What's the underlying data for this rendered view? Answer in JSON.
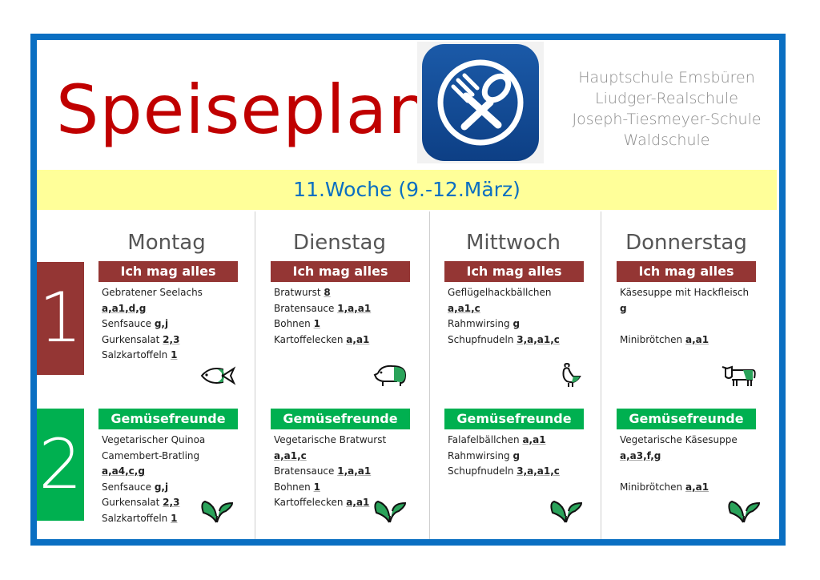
{
  "title": "Speiseplan",
  "schools": [
    "Hauptschule Emsbüren",
    "Liudger-Realschule",
    "Joseph-Tiesmeyer-Schule",
    "Waldschule"
  ],
  "week": "11.Woche (9.-12.März)",
  "rows": [
    {
      "number": "1",
      "label": "Ich mag alles",
      "color": "#943634"
    },
    {
      "number": "2",
      "label": "Gemüsefreunde",
      "color": "#00b050"
    }
  ],
  "days": [
    {
      "name": "Montag",
      "menu1": {
        "icon": "fish-icon",
        "lines": [
          {
            "t": "Gebratener Seelachs",
            "c": ""
          },
          {
            "t": "",
            "c": "a,a1,d,g"
          },
          {
            "t": "Senfsauce ",
            "c": "g,j"
          },
          {
            "t": "Gurkensalat ",
            "c": "2,3"
          },
          {
            "t": "Salzkartoffeln ",
            "c": "1"
          }
        ]
      },
      "menu2": {
        "icon": "leaves-icon",
        "lines": [
          {
            "t": "Vegetarischer Quinoa",
            "c": ""
          },
          {
            "t": "Camembert-Bratling",
            "c": ""
          },
          {
            "t": "",
            "c": "a,a4,c,g"
          },
          {
            "t": "Senfsauce ",
            "c": "g,j"
          },
          {
            "t": "Gurkensalat ",
            "c": "2,3"
          },
          {
            "t": "Salzkartoffeln ",
            "c": "1"
          }
        ]
      }
    },
    {
      "name": "Dienstag",
      "menu1": {
        "icon": "pig-icon",
        "lines": [
          {
            "t": "Bratwurst ",
            "c": "8"
          },
          {
            "t": "Bratensauce ",
            "c": "1,a,a1"
          },
          {
            "t": "Bohnen ",
            "c": "1"
          },
          {
            "t": "Kartoffelecken ",
            "c": "a,a1"
          }
        ]
      },
      "menu2": {
        "icon": "leaves-icon",
        "lines": [
          {
            "t": "Vegetarische Bratwurst",
            "c": ""
          },
          {
            "t": "",
            "c": "a,a1,c"
          },
          {
            "t": "Bratensauce ",
            "c": "1,a,a1"
          },
          {
            "t": "Bohnen ",
            "c": "1"
          },
          {
            "t": "Kartoffelecken ",
            "c": "a,a1"
          }
        ]
      }
    },
    {
      "name": "Mittwoch",
      "menu1": {
        "icon": "chicken-icon",
        "lines": [
          {
            "t": "Geflügelhackbällchen",
            "c": ""
          },
          {
            "t": "",
            "c": "a,a1,c"
          },
          {
            "t": "Rahmwirsing ",
            "c": "g"
          },
          {
            "t": "Schupfnudeln ",
            "c": "3,a,a1,c"
          }
        ]
      },
      "menu2": {
        "icon": "leaves-icon",
        "lines": [
          {
            "t": "Falafelbällchen ",
            "c": "a,a1"
          },
          {
            "t": "Rahmwirsing ",
            "c": "g"
          },
          {
            "t": "Schupfnudeln ",
            "c": "3,a,a1,c"
          }
        ]
      }
    },
    {
      "name": "Donnerstag",
      "menu1": {
        "icon": "cow-icon",
        "lines": [
          {
            "t": "Käsesuppe mit Hackfleisch",
            "c": ""
          },
          {
            "t": "",
            "c": "g"
          },
          {
            "t": " ",
            "c": ""
          },
          {
            "t": "Minibrötchen ",
            "c": "a,a1"
          }
        ]
      },
      "menu2": {
        "icon": "leaves-icon",
        "lines": [
          {
            "t": "Vegetarische Käsesuppe",
            "c": ""
          },
          {
            "t": "",
            "c": "a,a3,f,g"
          },
          {
            "t": " ",
            "c": ""
          },
          {
            "t": "Minibrötchen ",
            "c": "a,a1"
          }
        ]
      }
    }
  ]
}
